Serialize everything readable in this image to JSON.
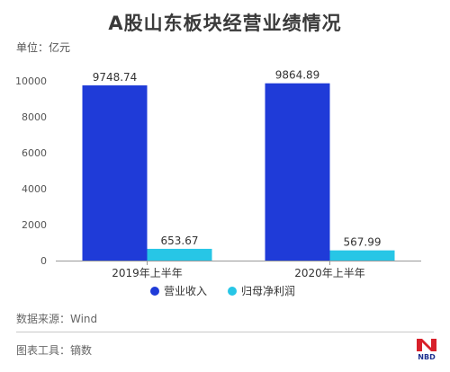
{
  "header": {
    "title": "A股山东板块经营业绩情况",
    "unit": "单位：亿元"
  },
  "footer": {
    "source": "数据来源：Wind",
    "tool": "图表工具：镝数",
    "logo_text": "NBD"
  },
  "chart_data": {
    "type": "bar",
    "title": "A股山东板块经营业绩情况",
    "ylabel": "单位：亿元",
    "xlabel": "",
    "categories": [
      "2019年上半年",
      "2020年上半年"
    ],
    "series": [
      {
        "name": "营业收入",
        "values": [
          9748.74,
          9864.89
        ],
        "labels": [
          "9748.74",
          "9864.89"
        ],
        "color": "#1f3bd8"
      },
      {
        "name": "归母净利润",
        "values": [
          653.67,
          567.99
        ],
        "labels": [
          "653.67",
          "567.99"
        ],
        "color": "#27c6e6"
      }
    ],
    "ylim": [
      0,
      10000
    ],
    "yticks": [
      0,
      2000,
      4000,
      6000,
      8000,
      10000
    ],
    "yticklabels": [
      "0",
      "2000",
      "4000",
      "6000",
      "8000",
      "10000"
    ],
    "grid": false,
    "legend": "bottom"
  }
}
